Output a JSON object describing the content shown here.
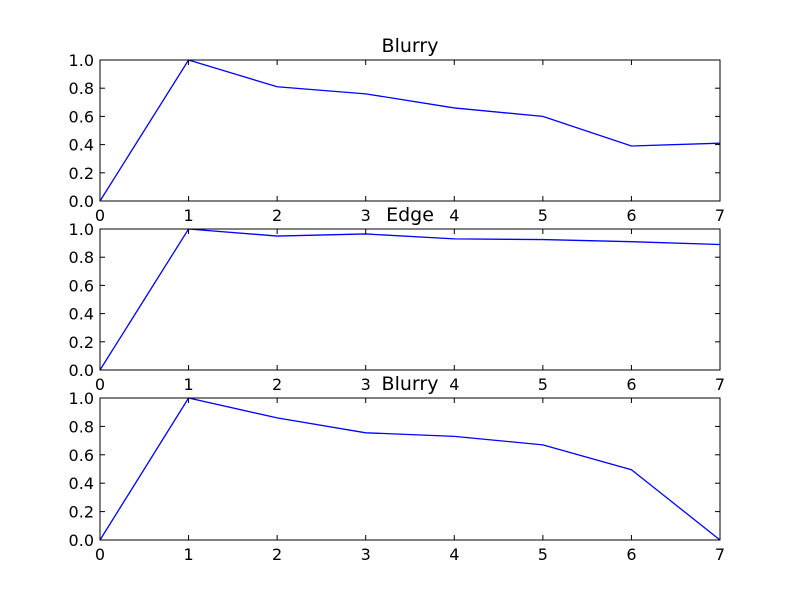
{
  "chart_data": [
    {
      "type": "line",
      "title": "Blurry",
      "xlabel": "",
      "ylabel": "",
      "xlim": [
        0,
        7
      ],
      "ylim": [
        0,
        1
      ],
      "x_ticks": [
        "0",
        "1",
        "2",
        "3",
        "4",
        "5",
        "6",
        "7"
      ],
      "y_ticks": [
        "0.0",
        "0.2",
        "0.4",
        "0.6",
        "0.8",
        "1.0"
      ],
      "grid": false,
      "line_color": "#0000ff",
      "x": [
        0,
        1,
        2,
        3,
        4,
        5,
        6,
        7
      ],
      "values": [
        0.0,
        1.0,
        0.81,
        0.76,
        0.66,
        0.6,
        0.39,
        0.41
      ]
    },
    {
      "type": "line",
      "title": "Edge",
      "xlabel": "",
      "ylabel": "",
      "xlim": [
        0,
        7
      ],
      "ylim": [
        0,
        1
      ],
      "x_ticks": [
        "0",
        "1",
        "2",
        "3",
        "4",
        "5",
        "6",
        "7"
      ],
      "y_ticks": [
        "0.0",
        "0.2",
        "0.4",
        "0.6",
        "0.8",
        "1.0"
      ],
      "grid": false,
      "line_color": "#0000ff",
      "x": [
        0,
        1,
        2,
        3,
        4,
        5,
        6,
        7
      ],
      "values": [
        0.0,
        1.0,
        0.95,
        0.965,
        0.93,
        0.925,
        0.91,
        0.89
      ]
    },
    {
      "type": "line",
      "title": "Blurry",
      "xlabel": "",
      "ylabel": "",
      "xlim": [
        0,
        7
      ],
      "ylim": [
        0,
        1
      ],
      "x_ticks": [
        "0",
        "1",
        "2",
        "3",
        "4",
        "5",
        "6",
        "7"
      ],
      "y_ticks": [
        "0.0",
        "0.2",
        "0.4",
        "0.6",
        "0.8",
        "1.0"
      ],
      "grid": false,
      "line_color": "#0000ff",
      "x": [
        0,
        1,
        2,
        3,
        4,
        5,
        6,
        7
      ],
      "values": [
        0.0,
        1.0,
        0.86,
        0.755,
        0.73,
        0.67,
        0.495,
        0.0
      ]
    }
  ]
}
